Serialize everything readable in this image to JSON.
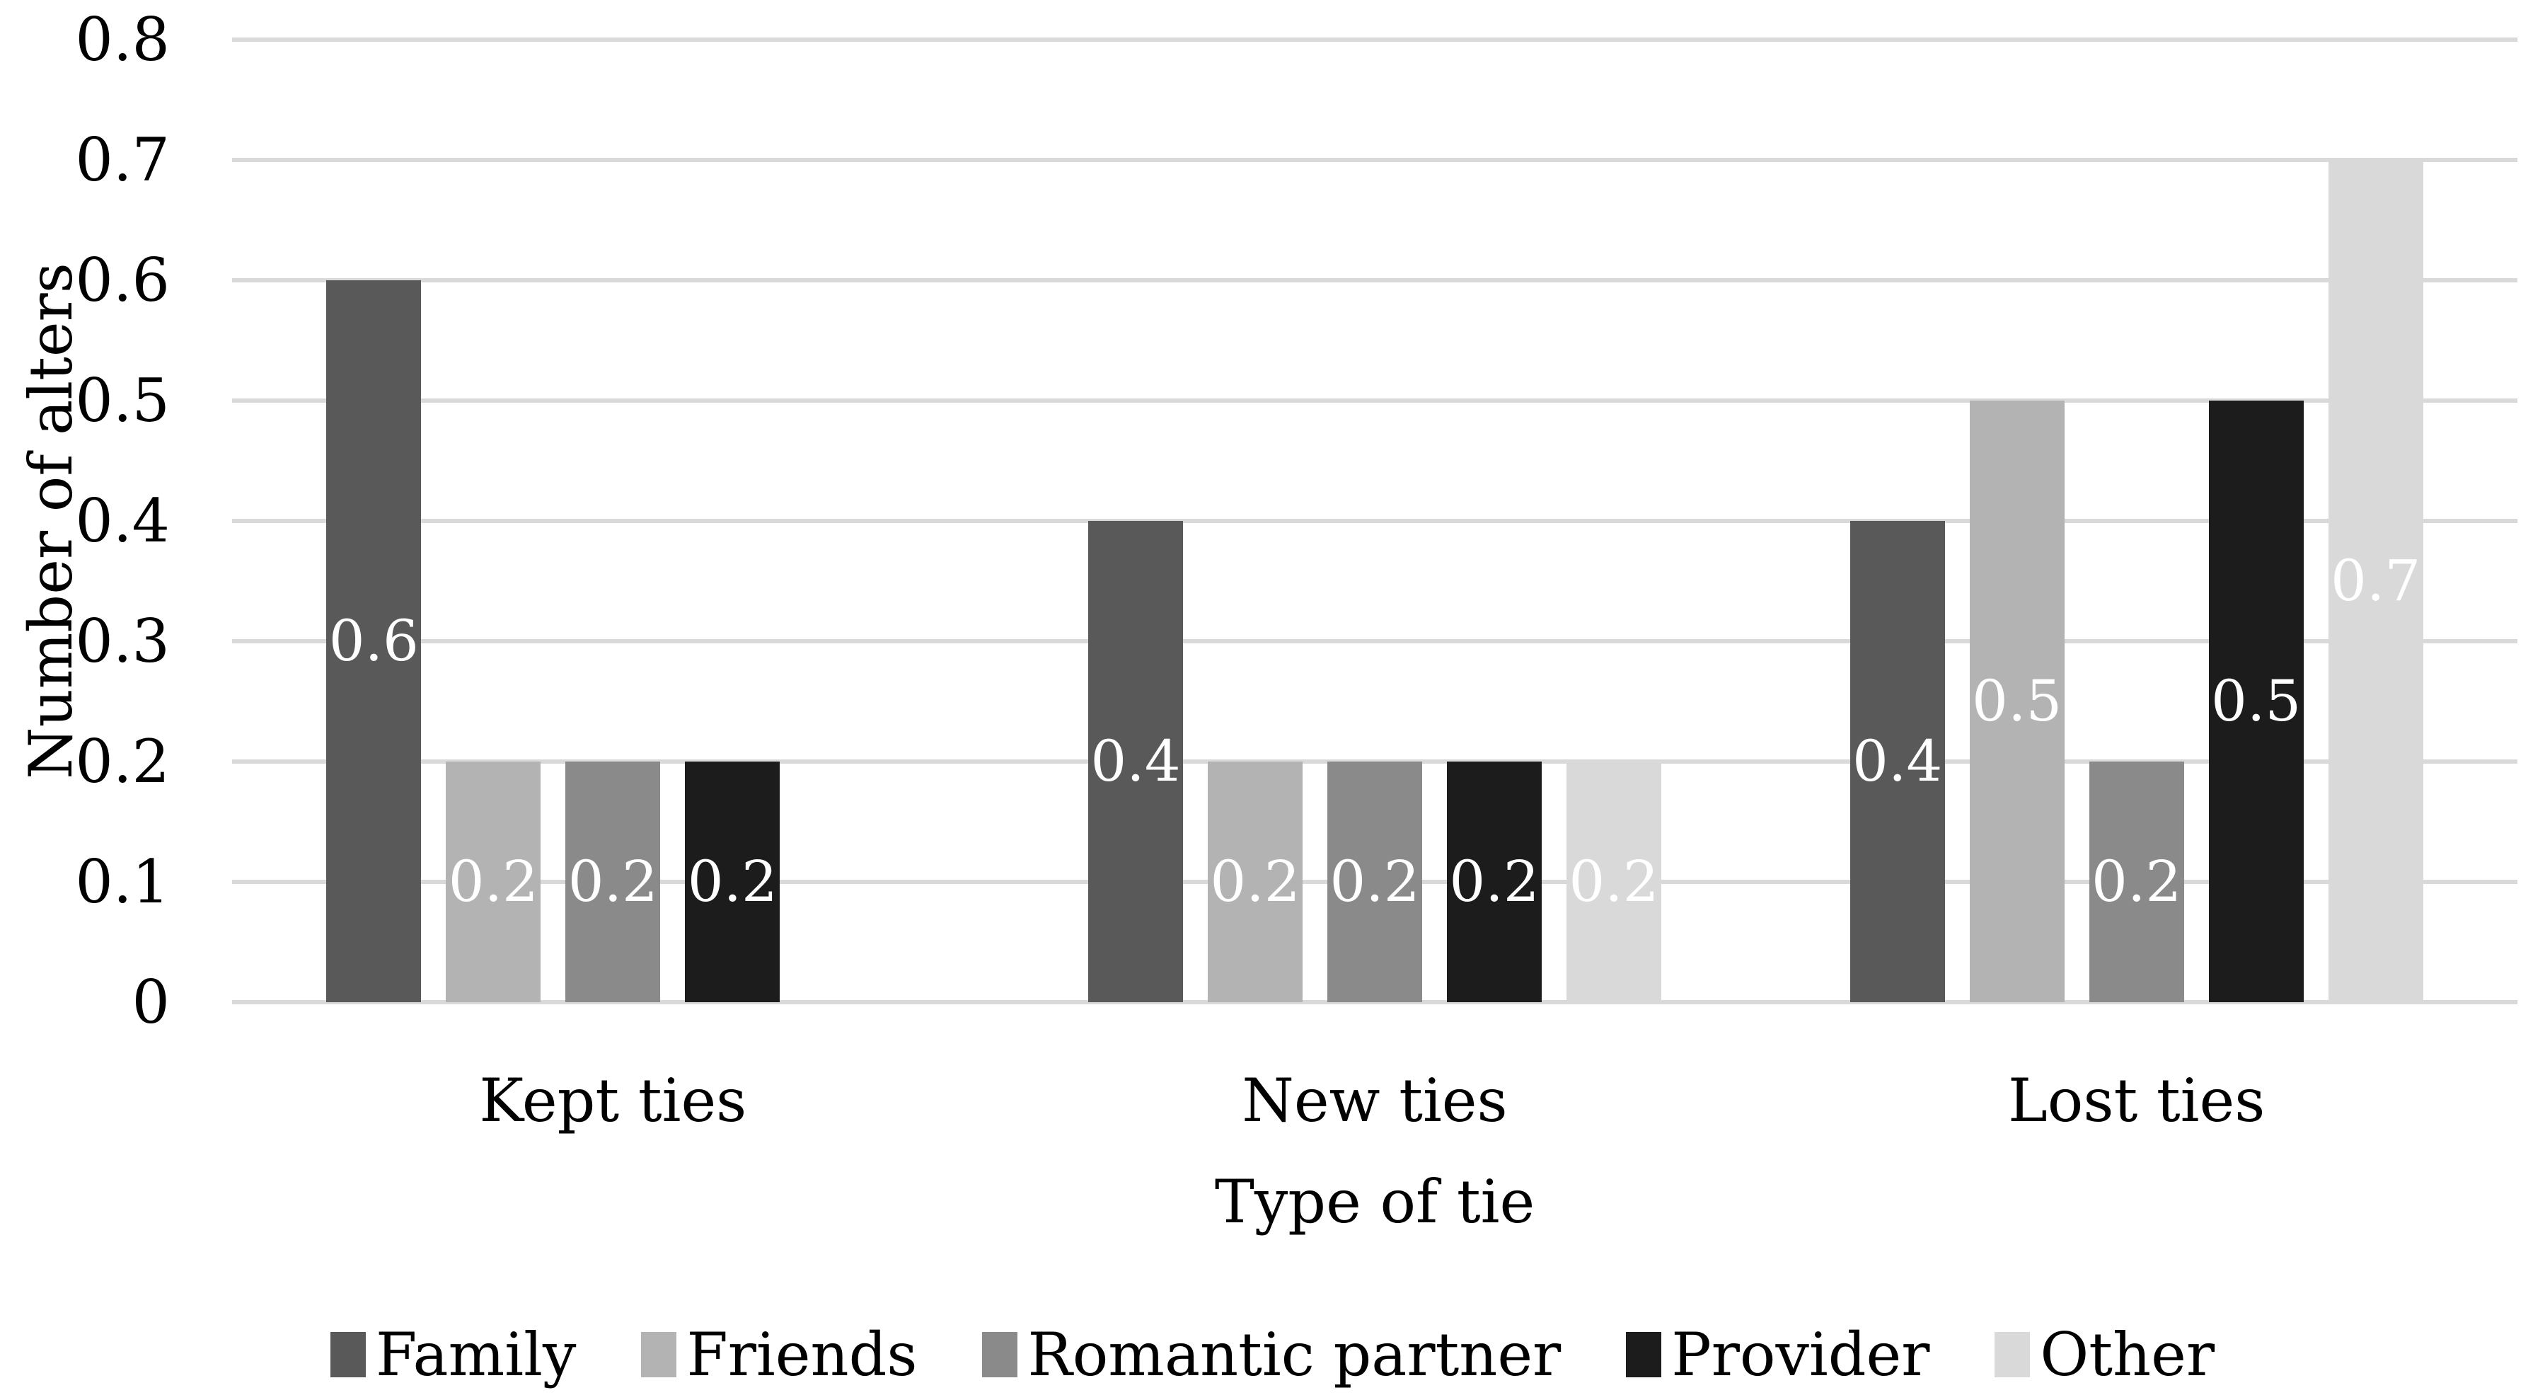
{
  "figure": {
    "background_color": "#ffffff",
    "text_color": "#000000",
    "gridline_color": "#d9d9d9",
    "bar_label_color": "#ffffff"
  },
  "chart_data": {
    "type": "bar",
    "title": "",
    "categories": [
      "Kept ties",
      "New ties",
      "Lost ties"
    ],
    "series": [
      {
        "name": "Family",
        "color": "#595959",
        "values": [
          0.6,
          0.4,
          0.4
        ],
        "labels": [
          "0.6",
          "0.4",
          "0.4"
        ]
      },
      {
        "name": "Friends",
        "color": "#b3b3b3",
        "values": [
          0.2,
          0.2,
          0.5
        ],
        "labels": [
          "0.2",
          "0.2",
          "0.5"
        ]
      },
      {
        "name": "Romantic partner",
        "color": "#8a8a8a",
        "values": [
          0.2,
          0.2,
          0.2
        ],
        "labels": [
          "0.2",
          "0.2",
          "0.2"
        ]
      },
      {
        "name": "Provider",
        "color": "#1c1c1c",
        "values": [
          0.2,
          0.2,
          0.5
        ],
        "labels": [
          "0.2",
          "0.2",
          "0.5"
        ]
      },
      {
        "name": "Other",
        "color": "#d9d9d9",
        "values": [
          0,
          0.2,
          0.7
        ],
        "labels": [
          "",
          "0.2",
          "0.7"
        ]
      }
    ],
    "xlabel": "Type of tie",
    "ylabel": "Number of alters",
    "ylim": [
      0,
      0.8
    ],
    "ytick_labels": [
      "0",
      "0.1",
      "0.2",
      "0.3",
      "0.4",
      "0.5",
      "0.6",
      "0.7",
      "0.8"
    ],
    "grid": true,
    "legend_position": "bottom",
    "data_labels": "center"
  }
}
